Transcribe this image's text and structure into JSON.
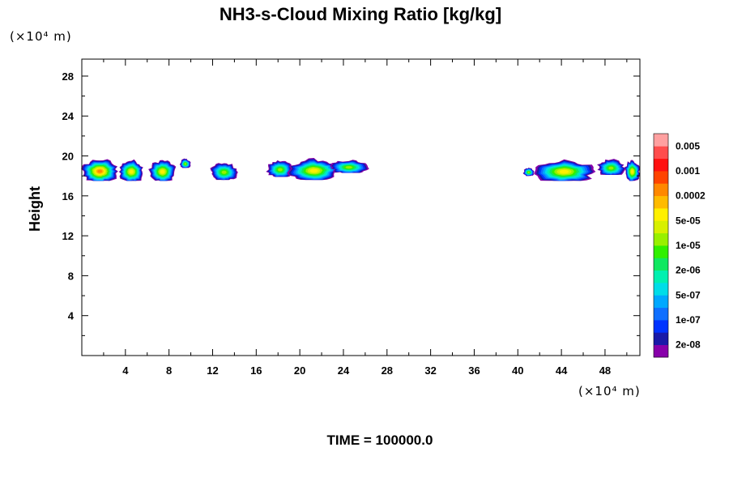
{
  "chart_data": {
    "type": "heatmap",
    "title": "NH3-s-Cloud Mixing Ratio [kg/kg]",
    "ylabel": "Height",
    "xlabel": "",
    "x_unit": "(×10⁴ m)",
    "y_unit": "(×10⁴ m)",
    "footer": "TIME = 100000.0",
    "xlim": [
      0,
      51.2
    ],
    "ylim": [
      0,
      29.7
    ],
    "x_ticks": [
      "4",
      "8",
      "12",
      "16",
      "20",
      "24",
      "28",
      "32",
      "36",
      "40",
      "44",
      "48"
    ],
    "y_ticks": [
      "4",
      "8",
      "12",
      "16",
      "20",
      "24",
      "28"
    ],
    "colorbar": {
      "labels": [
        "0.005",
        "0.001",
        "0.0002",
        "5e-05",
        "1e-05",
        "2e-06",
        "5e-07",
        "1e-07",
        "2e-08"
      ],
      "colors": [
        "#8800aa",
        "#1a1aa8",
        "#0033ff",
        "#0f6fff",
        "#00a8ff",
        "#00dde8",
        "#00f0b0",
        "#10e860",
        "#30f000",
        "#98f000",
        "#d8f000",
        "#fff000",
        "#ffbb00",
        "#ff8800",
        "#ff4400",
        "#ff1010",
        "#ff4d4d",
        "#ffa0a0"
      ]
    },
    "cloud_clusters": [
      {
        "x_start": 0.0,
        "x_end": 3.3,
        "y_bottom": 17.5,
        "y_top": 19.9,
        "peak_level": "0.0002"
      },
      {
        "x_start": 3.4,
        "x_end": 5.7,
        "y_bottom": 17.5,
        "y_top": 19.8,
        "peak_level": "5e-05"
      },
      {
        "x_start": 6.2,
        "x_end": 8.6,
        "y_bottom": 17.5,
        "y_top": 19.8,
        "peak_level": "5e-05"
      },
      {
        "x_start": 9.0,
        "x_end": 10.0,
        "y_bottom": 18.8,
        "y_top": 19.8,
        "peak_level": "1e-05"
      },
      {
        "x_start": 11.8,
        "x_end": 14.3,
        "y_bottom": 17.6,
        "y_top": 19.5,
        "peak_level": "1e-05"
      },
      {
        "x_start": 17.0,
        "x_end": 19.4,
        "y_bottom": 17.9,
        "y_top": 19.7,
        "peak_level": "1e-05"
      },
      {
        "x_start": 19.0,
        "x_end": 23.6,
        "y_bottom": 17.6,
        "y_top": 19.9,
        "peak_level": "5e-05"
      },
      {
        "x_start": 22.8,
        "x_end": 26.2,
        "y_bottom": 18.3,
        "y_top": 19.7,
        "peak_level": "1e-05"
      },
      {
        "x_start": 40.5,
        "x_end": 41.5,
        "y_bottom": 18.0,
        "y_top": 18.9,
        "peak_level": "1e-05"
      },
      {
        "x_start": 41.5,
        "x_end": 47.0,
        "y_bottom": 17.5,
        "y_top": 19.8,
        "peak_level": "5e-05"
      },
      {
        "x_start": 47.3,
        "x_end": 49.8,
        "y_bottom": 18.1,
        "y_top": 19.8,
        "peak_level": "1e-05"
      },
      {
        "x_start": 49.8,
        "x_end": 51.2,
        "y_bottom": 17.5,
        "y_top": 19.8,
        "peak_level": "5e-05"
      }
    ]
  }
}
